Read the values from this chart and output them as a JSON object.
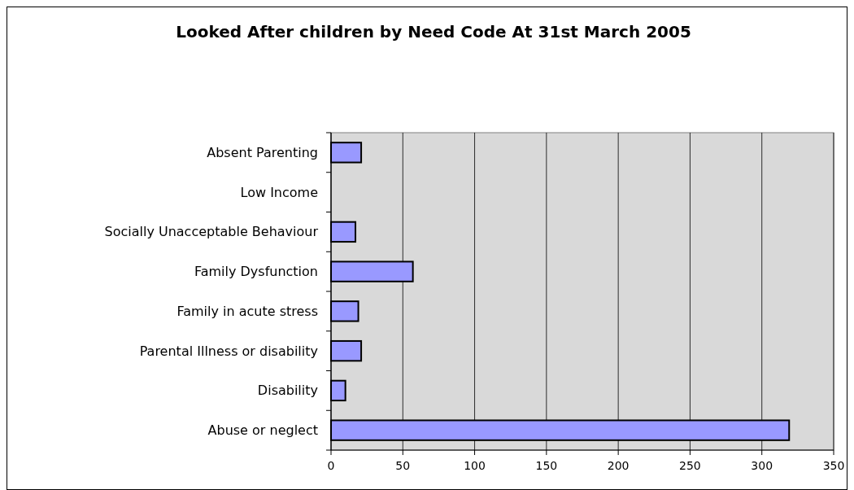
{
  "chart_data": {
    "type": "bar",
    "orientation": "horizontal",
    "title": "Looked After children by Need Code At 31st March 2005",
    "categories": [
      "Absent Parenting",
      "Low Income",
      "Socially Unacceptable Behaviour",
      "Family Dysfunction",
      "Family in acute stress",
      "Parental Illness or disability",
      "Disability",
      "Abuse or neglect"
    ],
    "values": [
      21,
      0,
      17,
      57,
      19,
      21,
      10,
      319
    ],
    "color": "#9999ff",
    "xlim": [
      0,
      350
    ],
    "xticks": [
      0,
      50,
      100,
      150,
      200,
      250,
      300,
      350
    ],
    "grid": "x"
  }
}
